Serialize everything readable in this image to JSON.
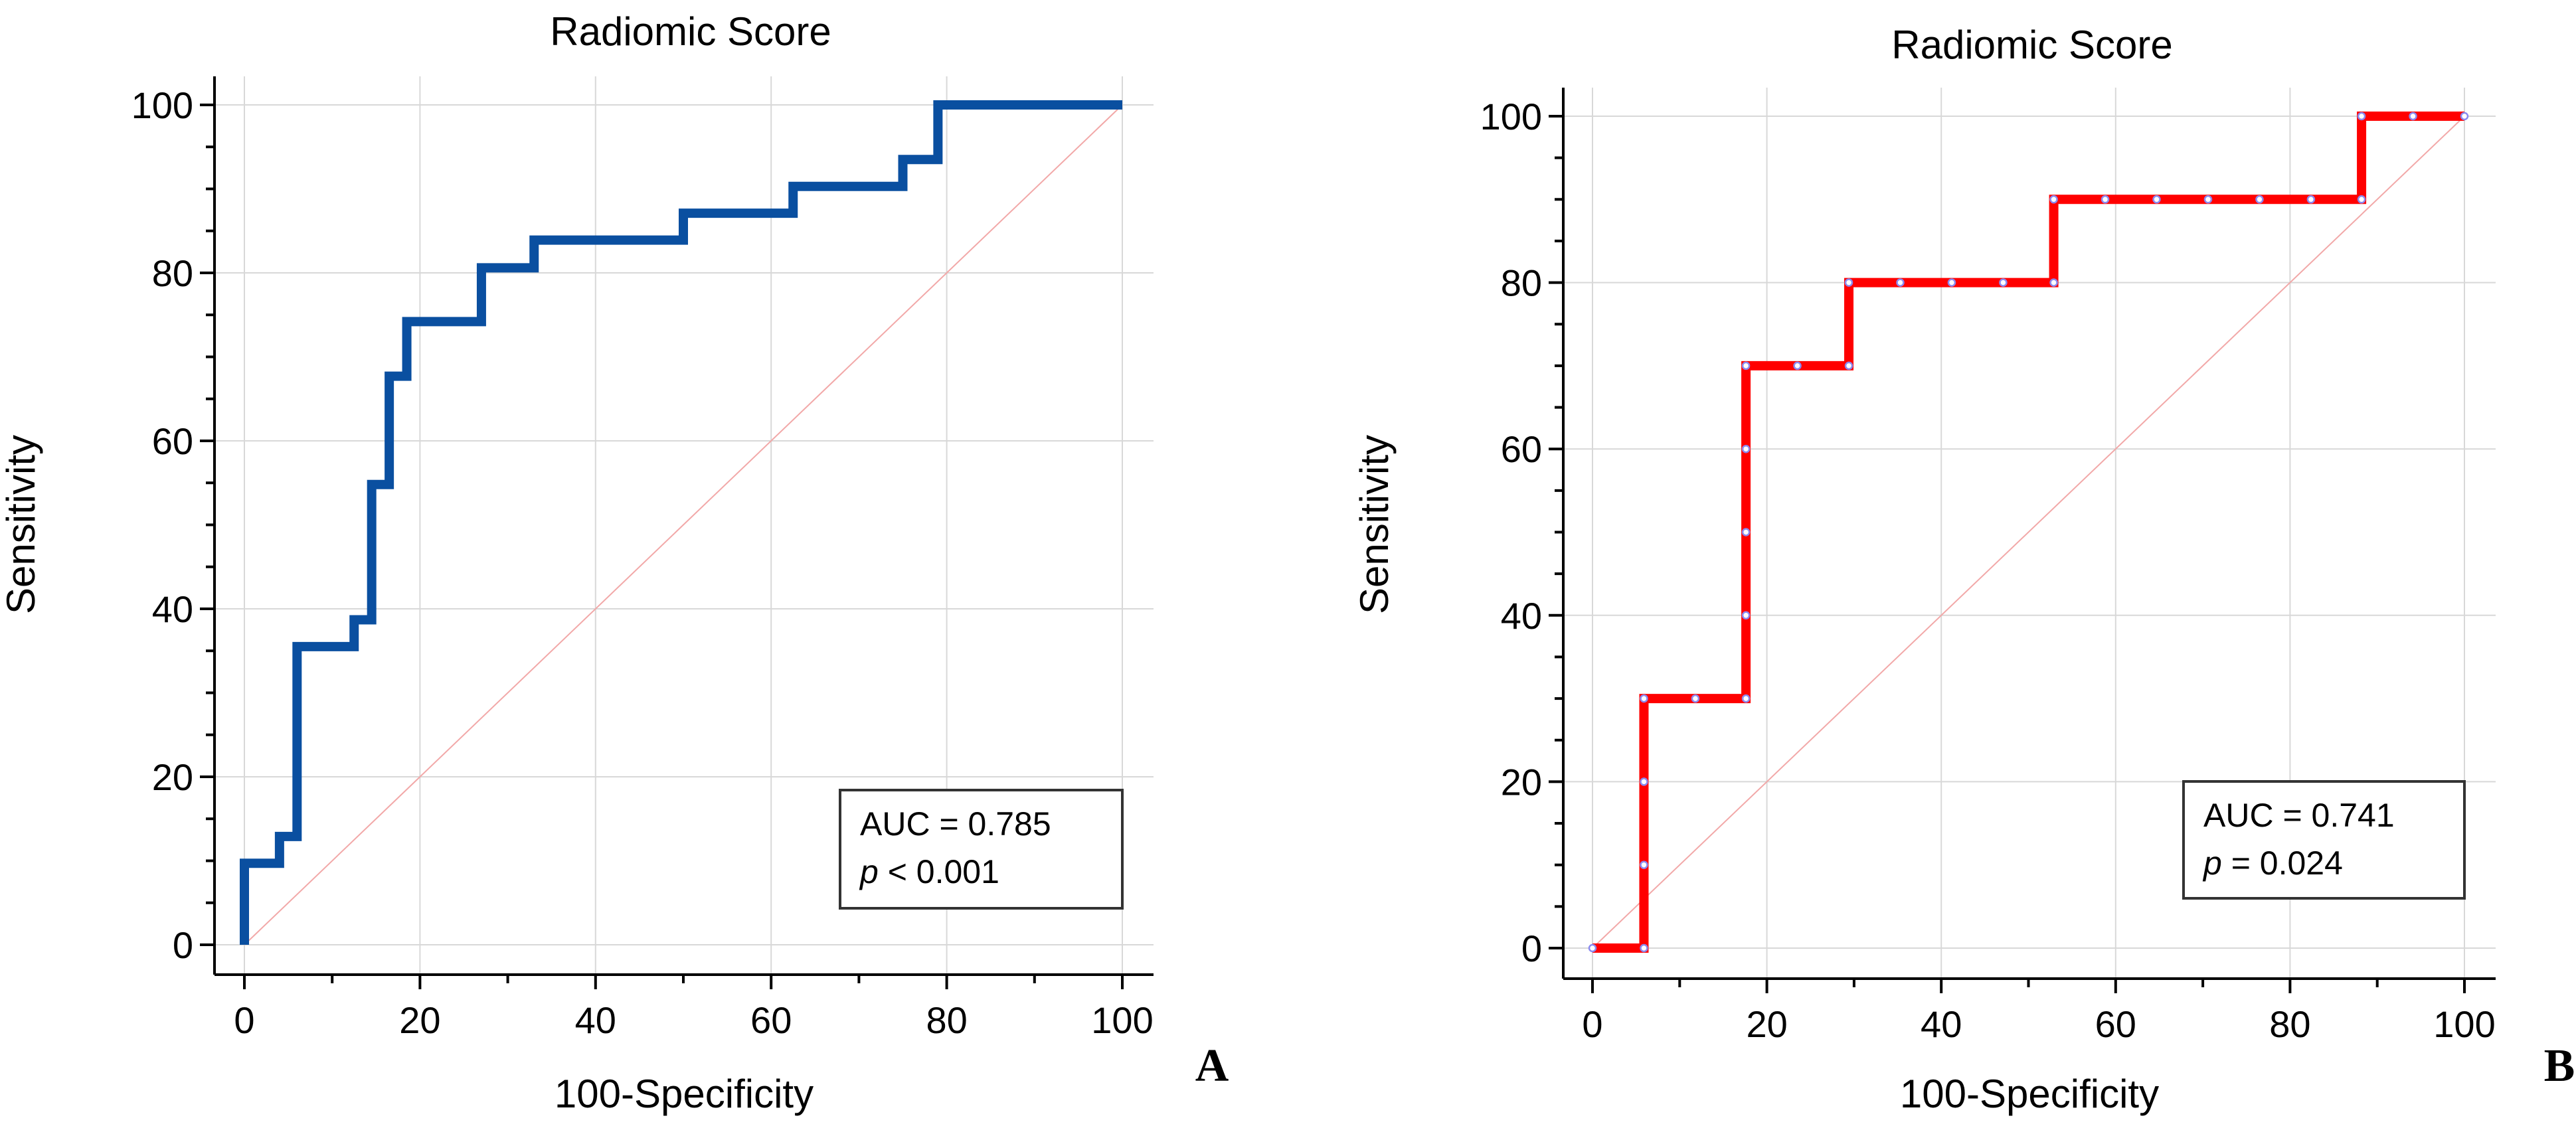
{
  "chart_data": [
    {
      "type": "line",
      "title": "Radiomic Score",
      "xlabel": "100-Specificity",
      "ylabel": "Sensitivity",
      "xlim": [
        0,
        100
      ],
      "ylim": [
        0,
        100
      ],
      "xticks": [
        0,
        20,
        40,
        60,
        80,
        100
      ],
      "yticks": [
        0,
        20,
        40,
        60,
        80,
        100
      ],
      "grid": true,
      "legend_position": "bottom-right",
      "panel_label": "A",
      "annotation": {
        "auc": "AUC = 0.785",
        "p_symbol": "p",
        "p_rest": " < 0.001"
      },
      "line_color": "#0a4fa0",
      "diagonal_color": "#f2a8a8",
      "series": [
        {
          "x": [
            0,
            0,
            4,
            4,
            6,
            6,
            12.5,
            12.5,
            14.5,
            14.5,
            16.5,
            16.5,
            18.5,
            18.5,
            27,
            27,
            33,
            33,
            50,
            50,
            62.5,
            62.5,
            75,
            75,
            79,
            79,
            100
          ],
          "y": [
            0,
            9.7,
            9.7,
            12.9,
            12.9,
            35.5,
            35.5,
            38.7,
            38.7,
            54.8,
            54.8,
            67.7,
            67.7,
            74.2,
            74.2,
            80.6,
            80.6,
            83.9,
            83.9,
            87.1,
            87.1,
            90.3,
            90.3,
            93.5,
            93.5,
            100,
            100
          ]
        }
      ]
    },
    {
      "type": "line",
      "title": "Radiomic Score",
      "xlabel": "100-Specificity",
      "ylabel": "Sensitivity",
      "xlim": [
        0,
        100
      ],
      "ylim": [
        0,
        100
      ],
      "xticks": [
        0,
        20,
        40,
        60,
        80,
        100
      ],
      "yticks": [
        0,
        20,
        40,
        60,
        80,
        100
      ],
      "grid": true,
      "legend_position": "bottom-right",
      "panel_label": "B",
      "annotation": {
        "auc": "AUC = 0.741",
        "p_symbol": "p",
        "p_rest": " = 0.024"
      },
      "line_color": "#ff0000",
      "diagonal_color": "#f2a8a8",
      "series": [
        {
          "x": [
            0,
            5.9,
            5.9,
            17.6,
            17.6,
            29.4,
            29.4,
            52.9,
            52.9,
            88.2,
            88.2,
            100
          ],
          "y": [
            0,
            0,
            30,
            30,
            70,
            70,
            80,
            80,
            90,
            90,
            100,
            100
          ]
        }
      ],
      "markers": {
        "x": [
          0,
          5.9,
          5.9,
          5.9,
          5.9,
          11.8,
          17.6,
          17.6,
          17.6,
          17.6,
          17.6,
          23.5,
          29.4,
          29.4,
          35.3,
          41.2,
          47.1,
          52.9,
          52.9,
          58.8,
          64.7,
          70.6,
          76.5,
          82.4,
          88.2,
          88.2,
          94.1,
          100
        ],
        "y": [
          0,
          0,
          10,
          20,
          30,
          30,
          30,
          40,
          50,
          60,
          70,
          70,
          70,
          80,
          80,
          80,
          80,
          80,
          90,
          90,
          90,
          90,
          90,
          90,
          90,
          100,
          100,
          100
        ]
      }
    }
  ]
}
